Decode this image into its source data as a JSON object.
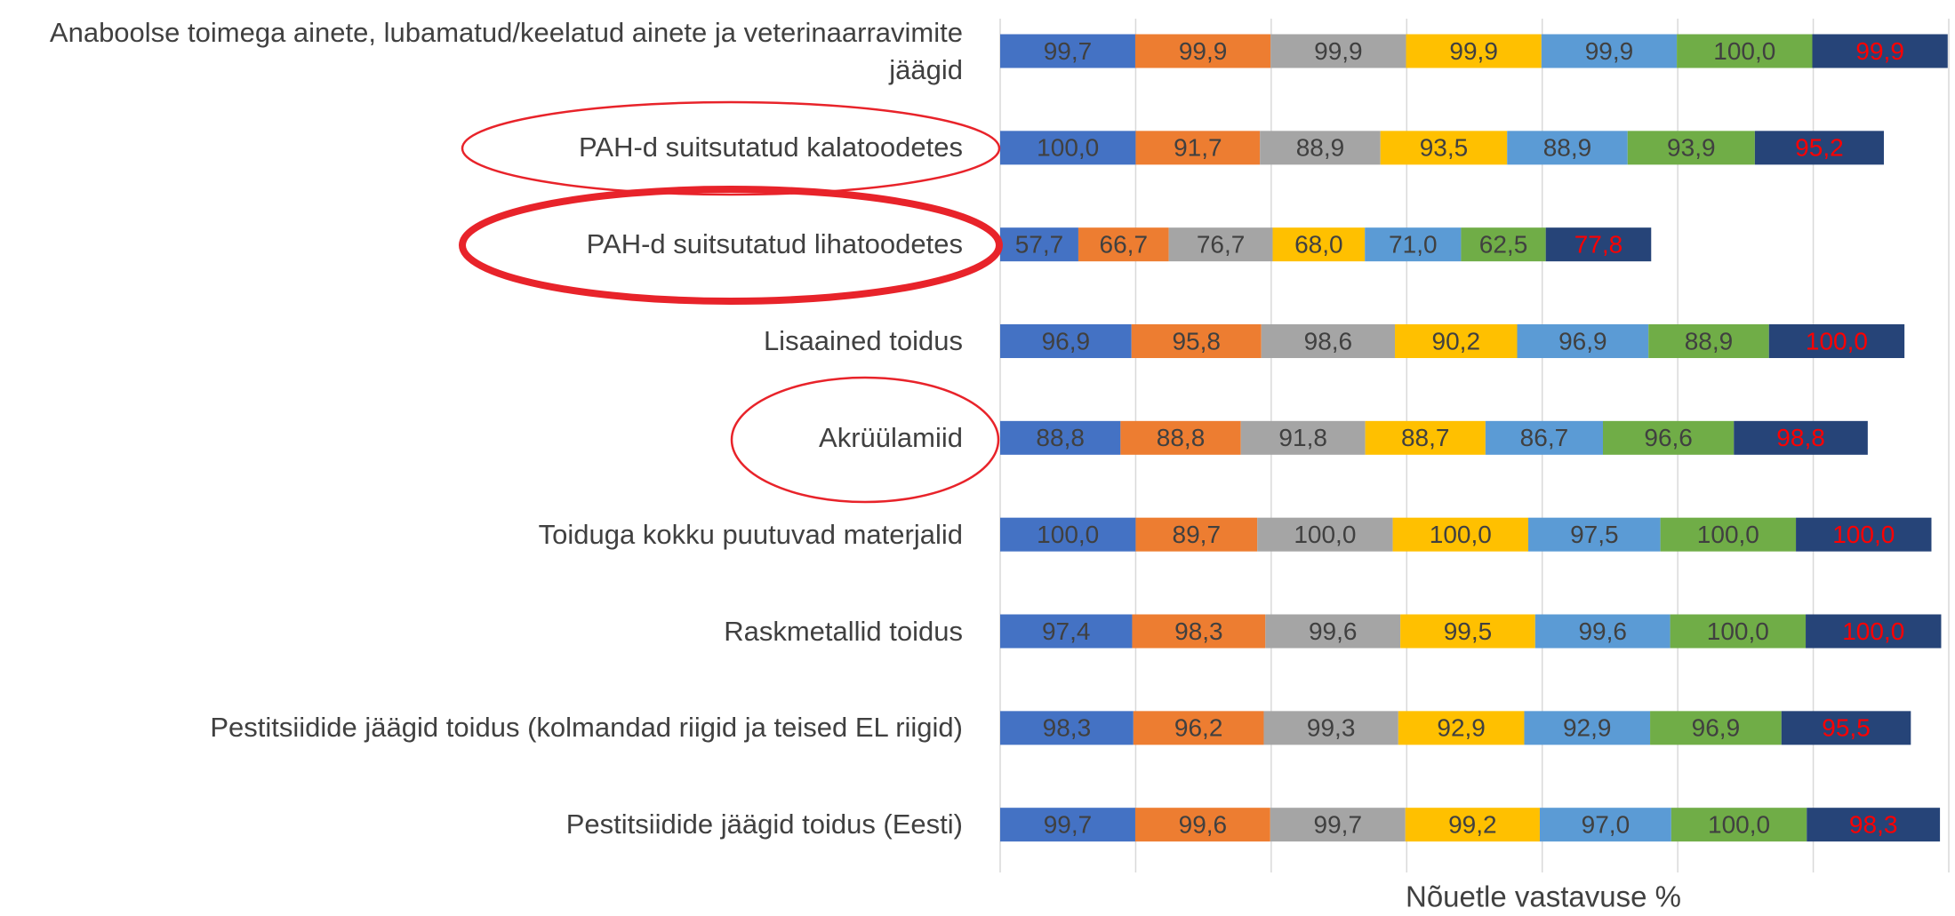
{
  "chart_data": {
    "type": "stacked_bar_horizontal",
    "x_label": "Nõuetle vastavuse %",
    "categories": [
      "Anaboolse toimega ainete, lubamatud/keelatud ainete ja veterinaarravimite jäägid",
      "PAH-d suitsutatud kalatoodetes",
      "PAH-d suitsutatud lihatoodetes",
      "Lisaained toidus",
      "Akrüülamiid",
      "Toiduga kokku puutuvad materjalid",
      "Raskmetallid toidus",
      "Pestitsiidide jäägid toidus (kolmandad riigid ja teised EL riigid)",
      "Pestitsiidide jäägid toidus (Eesti)"
    ],
    "series": [
      {
        "color": "#4472c4",
        "label_color": "#404040",
        "values": [
          99.7,
          100.0,
          57.7,
          96.9,
          88.8,
          100.0,
          97.4,
          98.3,
          99.7
        ],
        "value_labels": [
          "99,7",
          "100,0",
          "57,7",
          "96,9",
          "88,8",
          "100,0",
          "97,4",
          "98,3",
          "99,7"
        ]
      },
      {
        "color": "#ed7d31",
        "label_color": "#404040",
        "values": [
          99.9,
          91.7,
          66.7,
          95.8,
          88.8,
          89.7,
          98.3,
          96.2,
          99.6
        ],
        "value_labels": [
          "99,9",
          "91,7",
          "66,7",
          "95,8",
          "88,8",
          "89,7",
          "98,3",
          "96,2",
          "99,6"
        ]
      },
      {
        "color": "#a5a5a5",
        "label_color": "#404040",
        "values": [
          99.9,
          88.9,
          76.7,
          98.6,
          91.8,
          100.0,
          99.6,
          99.3,
          99.7
        ],
        "value_labels": [
          "99,9",
          "88,9",
          "76,7",
          "98,6",
          "91,8",
          "100,0",
          "99,6",
          "99,3",
          "99,7"
        ]
      },
      {
        "color": "#ffc000",
        "label_color": "#404040",
        "values": [
          99.9,
          93.5,
          68.0,
          90.2,
          88.7,
          100.0,
          99.5,
          92.9,
          99.2
        ],
        "value_labels": [
          "99,9",
          "93,5",
          "68,0",
          "90,2",
          "88,7",
          "100,0",
          "99,5",
          "92,9",
          "99,2"
        ]
      },
      {
        "color": "#5b9bd5",
        "label_color": "#404040",
        "values": [
          99.9,
          88.9,
          71.0,
          96.9,
          86.7,
          97.5,
          99.6,
          92.9,
          97.0
        ],
        "value_labels": [
          "99,9",
          "88,9",
          "71,0",
          "96,9",
          "86,7",
          "97,5",
          "99,6",
          "92,9",
          "97,0"
        ]
      },
      {
        "color": "#70ad47",
        "label_color": "#404040",
        "values": [
          100.0,
          93.9,
          62.5,
          88.9,
          96.6,
          100.0,
          100.0,
          96.9,
          100.0
        ],
        "value_labels": [
          "100,0",
          "93,9",
          "62,5",
          "88,9",
          "96,6",
          "100,0",
          "100,0",
          "96,9",
          "100,0"
        ]
      },
      {
        "color": "#264478",
        "label_color": "#ff0000",
        "values": [
          99.9,
          95.2,
          77.8,
          100.0,
          98.8,
          100.0,
          100.0,
          95.5,
          98.3
        ],
        "value_labels": [
          "99,9",
          "95,2",
          "77,8",
          "100,0",
          "98,8",
          "100,0",
          "100,0",
          "95,5",
          "98,3"
        ]
      }
    ],
    "xlim": [
      0,
      700
    ],
    "xticks": [
      0,
      100,
      200,
      300,
      400,
      500,
      600,
      700
    ],
    "grid": true
  }
}
